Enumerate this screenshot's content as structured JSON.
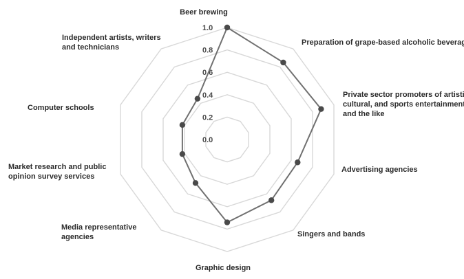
{
  "chart_data": {
    "type": "radar",
    "categories": [
      "Beer brewing",
      "Preparation of grape-based alcoholic beverages",
      "Private sector promoters of artistic, cultural, and sports entertainment, and the like",
      "Advertising agencies",
      "Singers and bands",
      "Graphic design",
      "Media representative agencies",
      "Market research and public opinion survey services",
      "Computer schools",
      "Independent artists, writers and technicians"
    ],
    "label_lines": [
      [
        "Beer brewing"
      ],
      [
        "Preparation of grape-based alcoholic beverages"
      ],
      [
        "Private sector promoters of artistic,",
        "cultural, and sports entertainment,",
        "and the like"
      ],
      [
        "Advertising agencies"
      ],
      [
        "Singers and bands"
      ],
      [
        "Graphic design"
      ],
      [
        "Media representative",
        "agencies"
      ],
      [
        "Market research and public",
        "opinion survey services"
      ],
      [
        "Computer schools"
      ],
      [
        "Independent artists, writers",
        "and technicians"
      ]
    ],
    "series": [
      {
        "values": [
          1.0,
          0.85,
          0.88,
          0.66,
          0.67,
          0.74,
          0.48,
          0.42,
          0.42,
          0.45
        ]
      }
    ],
    "ticks": [
      "0.0",
      "0.2",
      "0.4",
      "0.6",
      "0.8",
      "1.0"
    ],
    "rlim": [
      0,
      1
    ],
    "grid": true,
    "legend": "none",
    "colors": {
      "series": "#707070",
      "points": "#4a4a4a",
      "grid": "#d8d8d8"
    }
  }
}
